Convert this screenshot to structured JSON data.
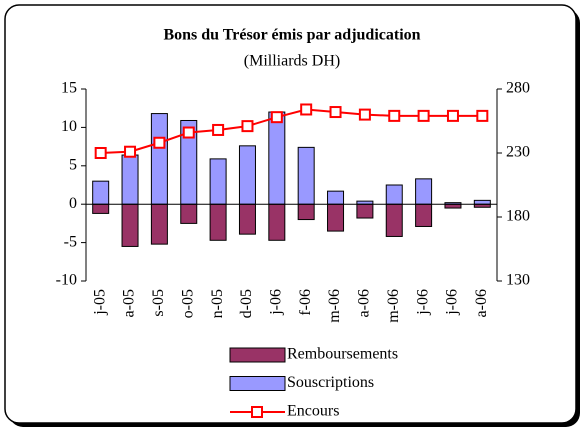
{
  "chart_data": {
    "type": "bar",
    "title": "Bons du Trésor émis par adjudication",
    "subtitle": "(Milliards DH)",
    "categories": [
      "j-05",
      "a-05",
      "s-05",
      "o-05",
      "n-05",
      "d-05",
      "j-06",
      "f-06",
      "m-06",
      "a-06",
      "m-06",
      "j-06",
      "j-06",
      "a-06"
    ],
    "series": [
      {
        "name": "Remboursements",
        "color": "#993366",
        "values": [
          -1.2,
          -5.5,
          -5.2,
          -2.5,
          -4.7,
          -3.9,
          -4.7,
          -2.0,
          -3.5,
          -1.8,
          -4.2,
          -2.9,
          -0.5,
          -0.4
        ]
      },
      {
        "name": "Souscriptions",
        "color": "#9999ff",
        "values": [
          3.0,
          6.4,
          11.8,
          10.9,
          5.9,
          7.6,
          12.0,
          7.4,
          1.7,
          0.4,
          2.5,
          3.3,
          0.2,
          0.5
        ]
      },
      {
        "name": "Encours",
        "color": "#ff0000",
        "type": "line",
        "axis": "y2",
        "values": [
          230,
          231,
          238,
          246,
          248,
          251,
          258,
          264,
          262,
          260,
          259,
          259,
          259,
          259
        ]
      }
    ],
    "ylim": [
      -10,
      15
    ],
    "yticks": [
      -10,
      -5,
      0,
      5,
      10,
      15
    ],
    "y2lim": [
      130,
      280
    ],
    "y2ticks": [
      130,
      180,
      230,
      280
    ],
    "legend": "bottom"
  }
}
